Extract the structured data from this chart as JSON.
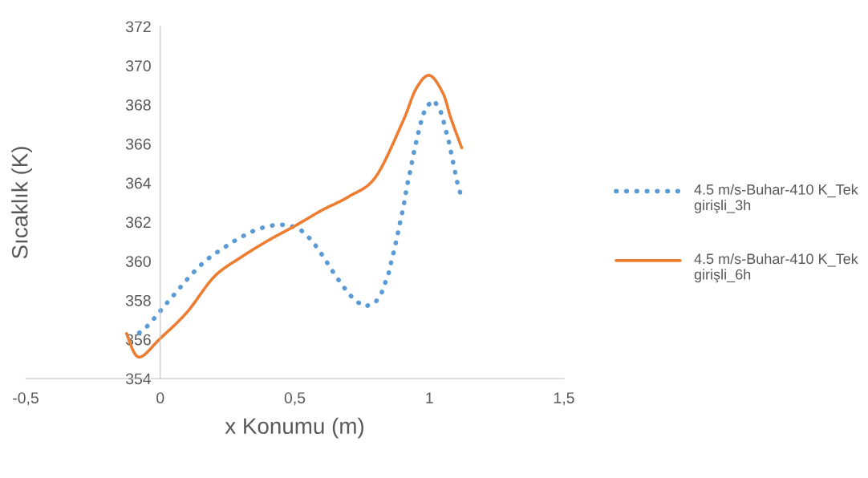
{
  "chart_data": {
    "type": "line",
    "xlabel": "x Konumu (m)",
    "ylabel": "Sıcaklık (K)",
    "xlim": [
      -0.5,
      1.5
    ],
    "xticks": [
      {
        "value": -0.5,
        "label": "-0,5"
      },
      0,
      {
        "value": 0.5,
        "label": "0,5"
      },
      1,
      {
        "value": 1.5,
        "label": "1,5"
      }
    ],
    "ylim": [
      354,
      372
    ],
    "yticks": [
      354,
      356,
      358,
      360,
      362,
      364,
      366,
      368,
      370,
      372
    ],
    "grid": false,
    "legend": "right",
    "marker": "none",
    "series": [
      {
        "name": "4.5 m/s-Buhar-410 K_Tek girişli_3h",
        "color": "#5b9bd5",
        "line_style": "dotted",
        "x": [
          -0.086,
          -0.052,
          -0.024,
          0.002,
          0.029,
          0.056,
          0.083,
          0.11,
          0.139,
          0.17,
          0.205,
          0.241,
          0.276,
          0.314,
          0.354,
          0.396,
          0.44,
          0.485,
          0.525,
          0.555,
          0.581,
          0.604,
          0.626,
          0.649,
          0.672,
          0.697,
          0.724,
          0.762,
          0.8,
          0.822,
          0.836,
          0.849,
          0.858,
          0.867,
          0.876,
          0.884,
          0.892,
          0.901,
          0.908,
          0.915,
          0.922,
          0.931,
          0.938,
          0.946,
          0.955,
          0.964,
          0.974,
          0.988,
          1.016,
          1.039,
          1.051,
          1.06,
          1.071,
          1.079,
          1.087,
          1.095,
          1.103,
          1.114
        ],
        "values": [
          356.25,
          356.62,
          357.05,
          357.49,
          357.93,
          358.36,
          358.8,
          359.23,
          359.65,
          360.05,
          360.4,
          360.73,
          361.04,
          361.33,
          361.6,
          361.78,
          361.88,
          361.81,
          361.56,
          361.17,
          360.73,
          360.27,
          359.8,
          359.3,
          358.86,
          358.4,
          357.98,
          357.68,
          357.9,
          358.36,
          358.9,
          359.4,
          359.94,
          360.45,
          360.99,
          361.5,
          362.05,
          362.6,
          363.1,
          363.7,
          364.2,
          364.73,
          365.27,
          365.8,
          366.33,
          366.86,
          367.38,
          367.9,
          368.23,
          367.77,
          367.25,
          366.73,
          366.2,
          365.66,
          365.13,
          364.6,
          364.06,
          363.52
        ]
      },
      {
        "name": "4.5 m/s-Buhar-410 K_Tek girişli_6h",
        "color": "#ed7d31",
        "line_style": "solid",
        "x": [
          -0.125,
          -0.08,
          0.0,
          0.1,
          0.2,
          0.3,
          0.4,
          0.5,
          0.6,
          0.7,
          0.8,
          0.9,
          0.95,
          1.0,
          1.05,
          1.08,
          1.12
        ],
        "values": [
          356.3,
          355.1,
          356.05,
          357.4,
          359.2,
          360.2,
          361.05,
          361.8,
          362.6,
          363.3,
          364.3,
          367.1,
          368.8,
          369.5,
          368.6,
          367.3,
          365.8
        ]
      }
    ]
  }
}
